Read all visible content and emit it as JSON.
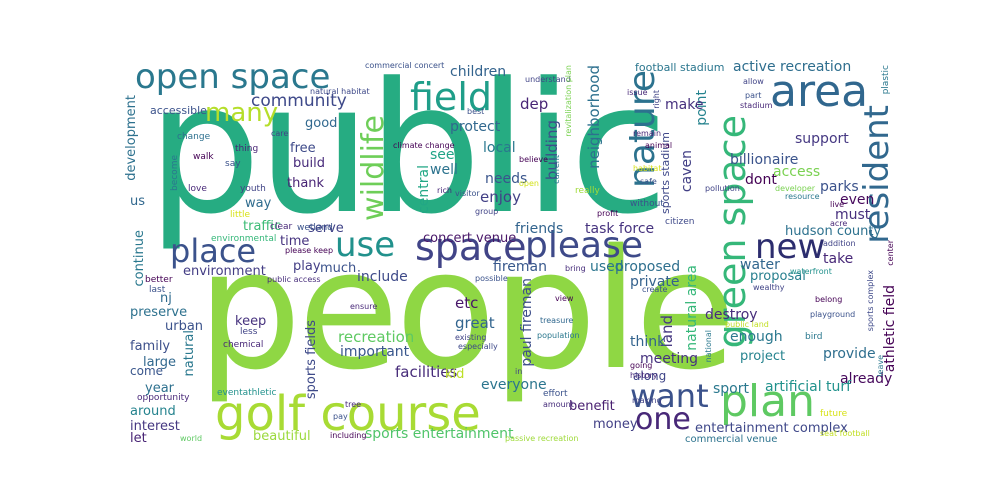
{
  "words": [
    {
      "text": "public",
      "color": "#26ac82"
    },
    {
      "text": "people",
      "color": "#8fd744"
    },
    {
      "text": "golf course",
      "color": "#a8db34"
    },
    {
      "text": "open space",
      "color": "#2a788e"
    },
    {
      "text": "area",
      "color": "#31678e"
    },
    {
      "text": "field",
      "color": "#1f9e89"
    },
    {
      "text": "space",
      "color": "#414487"
    },
    {
      "text": "please",
      "color": "#3e4a89"
    },
    {
      "text": "use",
      "color": "#21918c"
    },
    {
      "text": "place",
      "color": "#3b528b"
    },
    {
      "text": "plan",
      "color": "#5ec962"
    },
    {
      "text": "want",
      "color": "#3b528b"
    },
    {
      "text": "one",
      "color": "#482878"
    },
    {
      "text": "new",
      "color": "#2c2d6e"
    },
    {
      "text": "wildlife",
      "color": "#6ece58"
    },
    {
      "text": "nature",
      "color": "#2c728e"
    },
    {
      "text": "green space",
      "color": "#35b779"
    },
    {
      "text": "resident",
      "color": "#31688e"
    },
    {
      "text": "many",
      "color": "#b5de2b"
    },
    {
      "text": "community",
      "color": "#3e4989"
    },
    {
      "text": "children",
      "color": "#33638d"
    },
    {
      "text": "neighborhood",
      "color": "#2d708e"
    },
    {
      "text": "football stadium",
      "color": "#2a768e"
    },
    {
      "text": "active recreation",
      "color": "#2e6e8e"
    },
    {
      "text": "point",
      "color": "#25838e"
    },
    {
      "text": "make",
      "color": "#46307e"
    },
    {
      "text": "dep",
      "color": "#482576"
    },
    {
      "text": "building",
      "color": "#3d4d8a"
    },
    {
      "text": "protect",
      "color": "#31688e"
    },
    {
      "text": "local",
      "color": "#2a788e"
    },
    {
      "text": "needs",
      "color": "#39558c"
    },
    {
      "text": "enjoy",
      "color": "#424086"
    },
    {
      "text": "friends",
      "color": "#32648e"
    },
    {
      "text": "task force",
      "color": "#46337f"
    },
    {
      "text": "concert venue",
      "color": "#481668"
    },
    {
      "text": "land",
      "color": "#453781"
    },
    {
      "text": "natural area",
      "color": "#35b779"
    },
    {
      "text": "support",
      "color": "#453882"
    },
    {
      "text": "billionaire",
      "color": "#3a538b"
    },
    {
      "text": "access",
      "color": "#7ad151"
    },
    {
      "text": "parks",
      "color": "#3b528b"
    },
    {
      "text": "dont",
      "color": "#440154"
    },
    {
      "text": "caven",
      "color": "#423f85"
    },
    {
      "text": "sports stadium",
      "color": "#3f4889"
    },
    {
      "text": "see",
      "color": "#20a486"
    },
    {
      "text": "well",
      "color": "#2c738e"
    },
    {
      "text": "central",
      "color": "#22a785"
    },
    {
      "text": "must",
      "color": "#472f7d"
    },
    {
      "text": "even",
      "color": "#46085c"
    },
    {
      "text": "hudson county",
      "color": "#2d718e"
    },
    {
      "text": "take",
      "color": "#482878"
    },
    {
      "text": "water",
      "color": "#31668e"
    },
    {
      "text": "proposal",
      "color": "#277f8e"
    },
    {
      "text": "proposed",
      "color": "#2e6f8e"
    },
    {
      "text": "private",
      "color": "#34618d"
    },
    {
      "text": "used",
      "color": "#2b758e"
    },
    {
      "text": "fireman",
      "color": "#38588c"
    },
    {
      "text": "paul fireman",
      "color": "#3d4e8a"
    },
    {
      "text": "destroy",
      "color": "#472d7b"
    },
    {
      "text": "enough",
      "color": "#2a788e"
    },
    {
      "text": "think",
      "color": "#33638d"
    },
    {
      "text": "meeting",
      "color": "#46327e"
    },
    {
      "text": "project",
      "color": "#25838e"
    },
    {
      "text": "provide",
      "color": "#2e6e8e"
    },
    {
      "text": "athletic field",
      "color": "#440154"
    },
    {
      "text": "already",
      "color": "#46085c"
    },
    {
      "text": "sport",
      "color": "#2a788e"
    },
    {
      "text": "artificial turf",
      "color": "#20928c"
    },
    {
      "text": "benefit",
      "color": "#481f70"
    },
    {
      "text": "entertainment complex",
      "color": "#3f4889"
    },
    {
      "text": "commercial venue",
      "color": "#2c738e"
    },
    {
      "text": "along",
      "color": "#404688"
    },
    {
      "text": "everyone",
      "color": "#2b758e"
    },
    {
      "text": "money",
      "color": "#424086"
    },
    {
      "text": "great",
      "color": "#32648e"
    },
    {
      "text": "etc",
      "color": "#481769"
    },
    {
      "text": "facilities",
      "color": "#472c7a"
    },
    {
      "text": "kid",
      "color": "#bddf26"
    },
    {
      "text": "important",
      "color": "#39568c"
    },
    {
      "text": "recreation",
      "color": "#5ec962"
    },
    {
      "text": "sports entertainment",
      "color": "#50c46a"
    },
    {
      "text": "sports fields",
      "color": "#3e4a89"
    },
    {
      "text": "beautiful",
      "color": "#9bd93c"
    },
    {
      "text": "include",
      "color": "#3e4a89"
    },
    {
      "text": "much",
      "color": "#3b528b"
    },
    {
      "text": "play",
      "color": "#433e85"
    },
    {
      "text": "serve",
      "color": "#404387"
    },
    {
      "text": "time",
      "color": "#46337f"
    },
    {
      "text": "traffic",
      "color": "#3bbb75"
    },
    {
      "text": "way",
      "color": "#2f6c8e"
    },
    {
      "text": "thank",
      "color": "#482475"
    },
    {
      "text": "build",
      "color": "#472a7a"
    },
    {
      "text": "free",
      "color": "#3e4a89"
    },
    {
      "text": "good",
      "color": "#31688e"
    },
    {
      "text": "environment",
      "color": "#433d84"
    },
    {
      "text": "nj",
      "color": "#2f6b8e"
    },
    {
      "text": "preserve",
      "color": "#2d718e"
    },
    {
      "text": "urban",
      "color": "#3b528b"
    },
    {
      "text": "keep",
      "color": "#46327e"
    },
    {
      "text": "family",
      "color": "#3c4f8a"
    },
    {
      "text": "large",
      "color": "#31688e"
    },
    {
      "text": "natural",
      "color": "#2a788e"
    },
    {
      "text": "come",
      "color": "#39568c"
    },
    {
      "text": "year",
      "color": "#2d708e"
    },
    {
      "text": "around",
      "color": "#25838e"
    },
    {
      "text": "interest",
      "color": "#453781"
    },
    {
      "text": "let",
      "color": "#482475"
    },
    {
      "text": "development",
      "color": "#2d718e"
    },
    {
      "text": "accessible",
      "color": "#3b528b"
    },
    {
      "text": "us",
      "color": "#31688e"
    },
    {
      "text": "continue",
      "color": "#2a788e"
    },
    {
      "text": "change",
      "color": "#2d708e"
    },
    {
      "text": "walk",
      "color": "#440154"
    },
    {
      "text": "thing",
      "color": "#482475"
    },
    {
      "text": "say",
      "color": "#3b528b"
    },
    {
      "text": "become",
      "color": "#2a788e"
    },
    {
      "text": "love",
      "color": "#482878"
    },
    {
      "text": "youth",
      "color": "#414487"
    },
    {
      "text": "natural habitat",
      "color": "#3e4989"
    },
    {
      "text": "commercial concert",
      "color": "#3b528b"
    },
    {
      "text": "wetland",
      "color": "#3a538b"
    },
    {
      "text": "little",
      "color": "#d8e219"
    },
    {
      "text": "clear",
      "color": "#482878"
    },
    {
      "text": "environmental",
      "color": "#35b779"
    },
    {
      "text": "please keep",
      "color": "#440154"
    },
    {
      "text": "public access",
      "color": "#472d7b"
    },
    {
      "text": "last",
      "color": "#3b528b"
    },
    {
      "text": "better",
      "color": "#440154"
    },
    {
      "text": "chemical",
      "color": "#482878"
    },
    {
      "text": "less",
      "color": "#414487"
    },
    {
      "text": "opportunity",
      "color": "#482878"
    },
    {
      "text": "eventathletic",
      "color": "#21918c"
    },
    {
      "text": "world",
      "color": "#5ec962"
    },
    {
      "text": "pay",
      "color": "#3b528b"
    },
    {
      "text": "tree",
      "color": "#482878"
    },
    {
      "text": "including",
      "color": "#440154"
    },
    {
      "text": "passive recreation",
      "color": "#9fda3a"
    },
    {
      "text": "amount",
      "color": "#472d7b"
    },
    {
      "text": "effort",
      "color": "#3b528b"
    },
    {
      "text": "existing",
      "color": "#414487"
    },
    {
      "text": "especially",
      "color": "#3e4989"
    },
    {
      "text": "population",
      "color": "#2a788e"
    },
    {
      "text": "treasure",
      "color": "#31688e"
    },
    {
      "text": "view",
      "color": "#440154"
    },
    {
      "text": "ensure",
      "color": "#482878"
    },
    {
      "text": "possible",
      "color": "#3b528b"
    },
    {
      "text": "bring",
      "color": "#472d7b"
    },
    {
      "text": "citizen",
      "color": "#3e4989"
    },
    {
      "text": "profit",
      "color": "#440154"
    },
    {
      "text": "without",
      "color": "#3b528b"
    },
    {
      "text": "group",
      "color": "#414487"
    },
    {
      "text": "visitor",
      "color": "#3b528b"
    },
    {
      "text": "rich",
      "color": "#482878"
    },
    {
      "text": "open",
      "color": "#d2e21b"
    },
    {
      "text": "believe",
      "color": "#440154"
    },
    {
      "text": "understand",
      "color": "#414487"
    },
    {
      "text": "issue",
      "color": "#482878"
    },
    {
      "text": "revitalization plan",
      "color": "#7ad151"
    },
    {
      "text": "current",
      "color": "#2a788e"
    },
    {
      "text": "really",
      "color": "#a0da39"
    },
    {
      "text": "climate change",
      "color": "#440154"
    },
    {
      "text": "best",
      "color": "#3b528b"
    },
    {
      "text": "right",
      "color": "#414487"
    },
    {
      "text": "remain",
      "color": "#482878"
    },
    {
      "text": "animal",
      "color": "#440154"
    },
    {
      "text": "habitat",
      "color": "#d8e219"
    },
    {
      "text": "safe",
      "color": "#3b528b"
    },
    {
      "text": "stadium",
      "color": "#482878"
    },
    {
      "text": "allow",
      "color": "#414487"
    },
    {
      "text": "part",
      "color": "#3b528b"
    },
    {
      "text": "pollution",
      "color": "#414487"
    },
    {
      "text": "developer",
      "color": "#7ad151"
    },
    {
      "text": "resource",
      "color": "#2a788e"
    },
    {
      "text": "live",
      "color": "#440154"
    },
    {
      "text": "acre",
      "color": "#482878"
    },
    {
      "text": "addition",
      "color": "#414487"
    },
    {
      "text": "waterfront",
      "color": "#21918c"
    },
    {
      "text": "wealthy",
      "color": "#414487"
    },
    {
      "text": "belong",
      "color": "#440154"
    },
    {
      "text": "playground",
      "color": "#3b528b"
    },
    {
      "text": "public land",
      "color": "#c2df23"
    },
    {
      "text": "bird",
      "color": "#2a788e"
    },
    {
      "text": "future",
      "color": "#d8e219"
    },
    {
      "text": "history",
      "color": "#482878"
    },
    {
      "text": "going",
      "color": "#440154"
    },
    {
      "text": "making",
      "color": "#414487"
    },
    {
      "text": "create",
      "color": "#3b528b"
    },
    {
      "text": "national",
      "color": "#2a788e"
    },
    {
      "text": "seat football",
      "color": "#c2df23"
    },
    {
      "text": "sports complex",
      "color": "#3e4989"
    },
    {
      "text": "leave",
      "color": "#2a788e"
    },
    {
      "text": "center",
      "color": "#440154"
    },
    {
      "text": "care",
      "color": "#414487"
    },
    {
      "text": "plastic",
      "color": "#2a788e"
    },
    {
      "text": "in",
      "color": "#414487"
    }
  ]
}
